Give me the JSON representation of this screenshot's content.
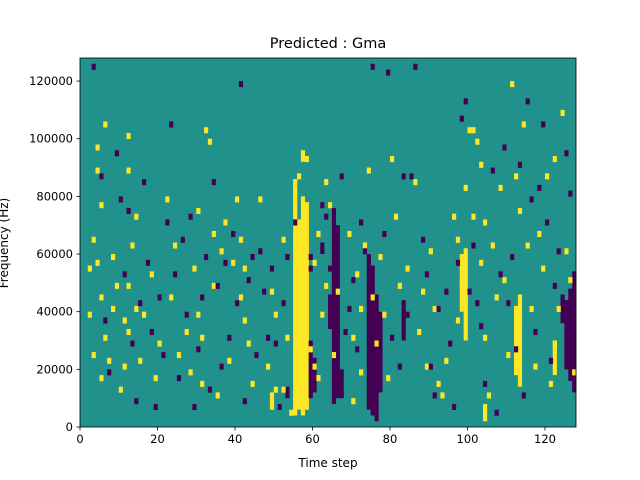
{
  "chart_data": {
    "type": "heatmap",
    "title": "Predicted : Gma",
    "xlabel": "Time step",
    "ylabel": "Frequency (Hz)",
    "xlim": [
      0,
      128
    ],
    "ylim": [
      0,
      128000
    ],
    "x_ticks": [
      0,
      20,
      40,
      60,
      80,
      100,
      120
    ],
    "x_tick_labels": [
      "0",
      "20",
      "40",
      "60",
      "80",
      "100",
      "120"
    ],
    "y_ticks": [
      0,
      20000,
      40000,
      60000,
      80000,
      100000,
      120000
    ],
    "y_tick_labels": [
      "0",
      "20000",
      "40000",
      "60000",
      "80000",
      "100000",
      "120000"
    ],
    "grid": false,
    "colormap": "viridis",
    "colors": {
      "background": "#21918c",
      "high": "#fde725",
      "low": "#440154"
    },
    "cell_width": 1,
    "cell_height": 2000,
    "high_cells": [
      [
        2,
        54000
      ],
      [
        2,
        38000
      ],
      [
        3,
        64000
      ],
      [
        3,
        24000
      ],
      [
        4,
        96000
      ],
      [
        4,
        56000
      ],
      [
        4,
        88000
      ],
      [
        5,
        16000
      ],
      [
        5,
        44000
      ],
      [
        5,
        76000
      ],
      [
        6,
        104000
      ],
      [
        6,
        30000
      ],
      [
        7,
        22000
      ],
      [
        8,
        58000
      ],
      [
        8,
        40000
      ],
      [
        9,
        48000
      ],
      [
        10,
        12000
      ],
      [
        11,
        36000
      ],
      [
        11,
        20000
      ],
      [
        12,
        100000
      ],
      [
        12,
        88000
      ],
      [
        12,
        48000
      ],
      [
        12,
        32000
      ],
      [
        13,
        62000
      ],
      [
        14,
        72000
      ],
      [
        14,
        40000
      ],
      [
        15,
        22000
      ],
      [
        16,
        38000
      ],
      [
        18,
        52000
      ],
      [
        19,
        16000
      ],
      [
        20,
        28000
      ],
      [
        22,
        78000
      ],
      [
        23,
        44000
      ],
      [
        24,
        62000
      ],
      [
        25,
        24000
      ],
      [
        27,
        32000
      ],
      [
        28,
        18000
      ],
      [
        29,
        54000
      ],
      [
        30,
        74000
      ],
      [
        30,
        38000
      ],
      [
        31,
        30000
      ],
      [
        31,
        14000
      ],
      [
        32,
        102000
      ],
      [
        33,
        98000
      ],
      [
        34,
        66000
      ],
      [
        34,
        48000
      ],
      [
        35,
        10000
      ],
      [
        36,
        60000
      ],
      [
        37,
        70000
      ],
      [
        38,
        22000
      ],
      [
        39,
        56000
      ],
      [
        40,
        78000
      ],
      [
        41,
        64000
      ],
      [
        41,
        44000
      ],
      [
        42,
        54000
      ],
      [
        42,
        36000
      ],
      [
        43,
        28000
      ],
      [
        44,
        14000
      ],
      [
        46,
        78000
      ],
      [
        48,
        20000
      ],
      [
        49,
        46000
      ],
      [
        50,
        38000
      ],
      [
        50,
        12000
      ],
      [
        52,
        64000
      ],
      [
        52,
        12000
      ],
      [
        53,
        30000
      ],
      [
        54,
        4000
      ],
      [
        55,
        8000
      ],
      [
        55,
        18000
      ],
      [
        56,
        86000
      ],
      [
        56,
        44000
      ],
      [
        58,
        92000
      ],
      [
        59,
        26000
      ],
      [
        60,
        20000
      ],
      [
        60,
        56000
      ],
      [
        61,
        16000
      ],
      [
        61,
        66000
      ],
      [
        62,
        38000
      ],
      [
        63,
        84000
      ],
      [
        63,
        48000
      ],
      [
        64,
        76000
      ],
      [
        65,
        24000
      ],
      [
        66,
        46000
      ],
      [
        69,
        66000
      ],
      [
        70,
        30000
      ],
      [
        70,
        8000
      ],
      [
        71,
        52000
      ],
      [
        72,
        40000
      ],
      [
        72,
        18000
      ],
      [
        73,
        62000
      ],
      [
        74,
        88000
      ],
      [
        75,
        44000
      ],
      [
        76,
        28000
      ],
      [
        77,
        58000
      ],
      [
        78,
        38000
      ],
      [
        79,
        16000
      ],
      [
        80,
        92000
      ],
      [
        81,
        72000
      ],
      [
        82,
        48000
      ],
      [
        84,
        54000
      ],
      [
        86,
        84000
      ],
      [
        87,
        32000
      ],
      [
        88,
        46000
      ],
      [
        89,
        20000
      ],
      [
        90,
        60000
      ],
      [
        91,
        40000
      ],
      [
        92,
        14000
      ],
      [
        93,
        10000
      ],
      [
        94,
        22000
      ],
      [
        96,
        72000
      ],
      [
        97,
        36000
      ],
      [
        97,
        64000
      ],
      [
        98,
        48000
      ],
      [
        99,
        44000
      ],
      [
        99,
        82000
      ],
      [
        100,
        102000
      ],
      [
        101,
        102000
      ],
      [
        101,
        72000
      ],
      [
        102,
        98000
      ],
      [
        103,
        90000
      ],
      [
        103,
        56000
      ],
      [
        104,
        70000
      ],
      [
        104,
        30000
      ],
      [
        105,
        10000
      ],
      [
        106,
        62000
      ],
      [
        107,
        44000
      ],
      [
        108,
        82000
      ],
      [
        109,
        50000
      ],
      [
        110,
        24000
      ],
      [
        111,
        118000
      ],
      [
        112,
        86000
      ],
      [
        113,
        74000
      ],
      [
        113,
        36000
      ],
      [
        114,
        104000
      ],
      [
        115,
        62000
      ],
      [
        116,
        40000
      ],
      [
        117,
        20000
      ],
      [
        118,
        66000
      ],
      [
        119,
        54000
      ],
      [
        120,
        86000
      ],
      [
        121,
        14000
      ],
      [
        122,
        92000
      ],
      [
        122,
        28000
      ],
      [
        123,
        40000
      ],
      [
        124,
        108000
      ],
      [
        125,
        60000
      ],
      [
        126,
        50000
      ],
      [
        127,
        18000
      ]
    ],
    "low_cells": [
      [
        3,
        124000
      ],
      [
        5,
        86000
      ],
      [
        6,
        36000
      ],
      [
        7,
        18000
      ],
      [
        9,
        94000
      ],
      [
        10,
        78000
      ],
      [
        11,
        52000
      ],
      [
        12,
        74000
      ],
      [
        13,
        28000
      ],
      [
        14,
        8000
      ],
      [
        15,
        42000
      ],
      [
        16,
        84000
      ],
      [
        17,
        56000
      ],
      [
        18,
        32000
      ],
      [
        19,
        6000
      ],
      [
        20,
        44000
      ],
      [
        21,
        24000
      ],
      [
        22,
        70000
      ],
      [
        23,
        104000
      ],
      [
        24,
        52000
      ],
      [
        25,
        16000
      ],
      [
        26,
        64000
      ],
      [
        27,
        38000
      ],
      [
        28,
        72000
      ],
      [
        29,
        6000
      ],
      [
        30,
        26000
      ],
      [
        31,
        44000
      ],
      [
        32,
        58000
      ],
      [
        33,
        12000
      ],
      [
        34,
        84000
      ],
      [
        35,
        48000
      ],
      [
        36,
        20000
      ],
      [
        37,
        56000
      ],
      [
        38,
        30000
      ],
      [
        39,
        66000
      ],
      [
        40,
        42000
      ],
      [
        41,
        118000
      ],
      [
        42,
        8000
      ],
      [
        43,
        50000
      ],
      [
        44,
        58000
      ],
      [
        45,
        24000
      ],
      [
        46,
        60000
      ],
      [
        47,
        46000
      ],
      [
        48,
        30000
      ],
      [
        49,
        54000
      ],
      [
        50,
        28000
      ],
      [
        51,
        6000
      ],
      [
        52,
        42000
      ],
      [
        53,
        58000
      ],
      [
        55,
        70000
      ],
      [
        59,
        58000
      ],
      [
        59,
        54000
      ],
      [
        62,
        76000
      ],
      [
        63,
        72000
      ],
      [
        64,
        54000
      ],
      [
        65,
        52000
      ],
      [
        67,
        86000
      ],
      [
        68,
        32000
      ],
      [
        69,
        40000
      ],
      [
        70,
        50000
      ],
      [
        71,
        26000
      ],
      [
        72,
        70000
      ],
      [
        73,
        60000
      ],
      [
        74,
        42000
      ],
      [
        75,
        124000
      ],
      [
        76,
        18000
      ],
      [
        78,
        66000
      ],
      [
        79,
        122000
      ],
      [
        80,
        30000
      ],
      [
        82,
        20000
      ],
      [
        83,
        86000
      ],
      [
        84,
        38000
      ],
      [
        85,
        86000
      ],
      [
        86,
        124000
      ],
      [
        88,
        64000
      ],
      [
        89,
        52000
      ],
      [
        90,
        20000
      ],
      [
        91,
        10000
      ],
      [
        92,
        40000
      ],
      [
        94,
        46000
      ],
      [
        95,
        28000
      ],
      [
        96,
        6000
      ],
      [
        97,
        56000
      ],
      [
        98,
        106000
      ],
      [
        99,
        112000
      ],
      [
        100,
        46000
      ],
      [
        101,
        62000
      ],
      [
        102,
        42000
      ],
      [
        103,
        34000
      ],
      [
        104,
        14000
      ],
      [
        106,
        88000
      ],
      [
        107,
        4000
      ],
      [
        108,
        52000
      ],
      [
        109,
        96000
      ],
      [
        110,
        42000
      ],
      [
        111,
        58000
      ],
      [
        112,
        26000
      ],
      [
        113,
        90000
      ],
      [
        114,
        10000
      ],
      [
        115,
        112000
      ],
      [
        116,
        78000
      ],
      [
        117,
        32000
      ],
      [
        118,
        82000
      ],
      [
        119,
        104000
      ],
      [
        120,
        70000
      ],
      [
        121,
        22000
      ],
      [
        122,
        48000
      ],
      [
        123,
        60000
      ],
      [
        125,
        94000
      ],
      [
        126,
        80000
      ]
    ],
    "high_bands": [
      [
        55,
        4000,
        86000
      ],
      [
        56,
        6000,
        72000
      ],
      [
        57,
        4000,
        80000
      ],
      [
        58,
        6000,
        78000
      ],
      [
        113,
        14000,
        46000
      ],
      [
        112,
        18000,
        42000
      ],
      [
        99,
        30000,
        62000
      ],
      [
        98,
        40000,
        60000
      ],
      [
        49,
        6000,
        12000
      ],
      [
        104,
        2000,
        8000
      ],
      [
        122,
        18000,
        30000
      ],
      [
        57,
        92000,
        96000
      ]
    ],
    "low_bands": [
      [
        65,
        8000,
        76000
      ],
      [
        66,
        10000,
        70000
      ],
      [
        74,
        6000,
        60000
      ],
      [
        75,
        4000,
        56000
      ],
      [
        83,
        30000,
        44000
      ],
      [
        127,
        12000,
        54000
      ],
      [
        126,
        16000,
        48000
      ],
      [
        125,
        20000,
        44000
      ],
      [
        124,
        36000,
        46000
      ],
      [
        59,
        10000,
        30000
      ],
      [
        60,
        12000,
        24000
      ],
      [
        64,
        34000,
        46000
      ],
      [
        76,
        2000,
        46000
      ],
      [
        77,
        12000,
        40000
      ],
      [
        67,
        10000,
        20000
      ],
      [
        62,
        60000,
        64000
      ],
      [
        53,
        10000,
        14000
      ]
    ]
  }
}
